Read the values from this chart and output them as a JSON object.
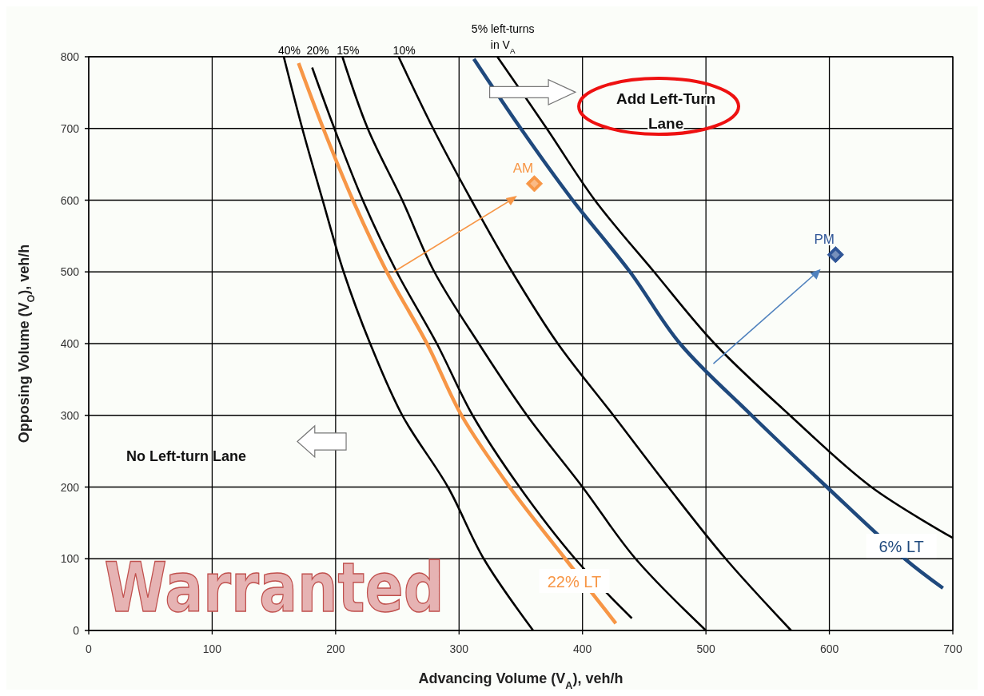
{
  "chart_data": {
    "type": "line",
    "xlabel": "Advancing Volume (V$_{A}$), veh/h",
    "ylabel": "Opposing Volume (V$_{O}$), veh/h",
    "xlim": [
      0,
      700
    ],
    "xticks": [
      0,
      100,
      200,
      300,
      400,
      500,
      600,
      700
    ],
    "ylim": [
      0,
      800
    ],
    "yticks": [
      0,
      100,
      200,
      300,
      400,
      500,
      600,
      700,
      800
    ],
    "grid": true,
    "legend": false,
    "line_style": "solid",
    "series": [
      {
        "name": "40%",
        "color": "#000000",
        "marker": "none",
        "x": [
          158,
          173,
          189.5,
          206.5,
          228,
          254,
          291,
          320,
          360
        ],
        "values": [
          800,
          700,
          600,
          500,
          400,
          300,
          200,
          100,
          0
        ]
      },
      {
        "name": "20%",
        "color": "#000000",
        "marker": "none",
        "x": [
          181,
          199,
          222,
          249.5,
          282,
          311,
          349,
          394,
          440
        ],
        "values": [
          785,
          700,
          600,
          500,
          400,
          300,
          200,
          100,
          17
        ]
      },
      {
        "name": "15%",
        "color": "#000000",
        "marker": "none",
        "x": [
          205.5,
          226,
          254,
          280,
          316,
          355,
          400,
          443,
          500
        ],
        "values": [
          800,
          700,
          600,
          500,
          400,
          300,
          200,
          100,
          0
        ]
      },
      {
        "name": "10%",
        "color": "#000000",
        "marker": "none",
        "x": [
          251,
          279,
          310,
          343,
          380,
          425,
          469.5,
          516,
          569
        ],
        "values": [
          800,
          700,
          600,
          500,
          400,
          300,
          200,
          100,
          0
        ]
      },
      {
        "name": "5% left-turns\nin V$_{A}$",
        "color": "#000000",
        "marker": "none",
        "x": [
          331,
          371,
          410,
          458,
          507,
          568,
          634,
          700
        ],
        "values": [
          800,
          700,
          600,
          500,
          400,
          300,
          200,
          129
        ]
      },
      {
        "name": "22% LT",
        "color": "#f79646",
        "marker": "none",
        "x": [
          170,
          190,
          214,
          241.5,
          274,
          302,
          341,
          386,
          427
        ],
        "values": [
          791,
          700,
          600,
          500,
          400,
          300,
          200,
          100,
          10
        ]
      },
      {
        "name": "6% LT",
        "color": "#1f497d",
        "marker": "none",
        "x": [
          312,
          350,
          392,
          438.5,
          479,
          537,
          598,
          661,
          692
        ],
        "values": [
          797,
          700,
          600,
          500,
          400,
          300,
          200,
          100,
          59
        ]
      },
      {
        "name": "AM",
        "type": "scatter",
        "color": "#f79646",
        "marker": "diamond",
        "x": [
          361
        ],
        "values": [
          623
        ]
      },
      {
        "name": "PM",
        "type": "scatter",
        "color": "#2f5597",
        "marker": "diamond",
        "x": [
          605
        ],
        "values": [
          524
        ]
      }
    ],
    "annotations": [
      "Add Left-Turn Lane",
      "No Left-turn Lane",
      "Warranted"
    ]
  }
}
